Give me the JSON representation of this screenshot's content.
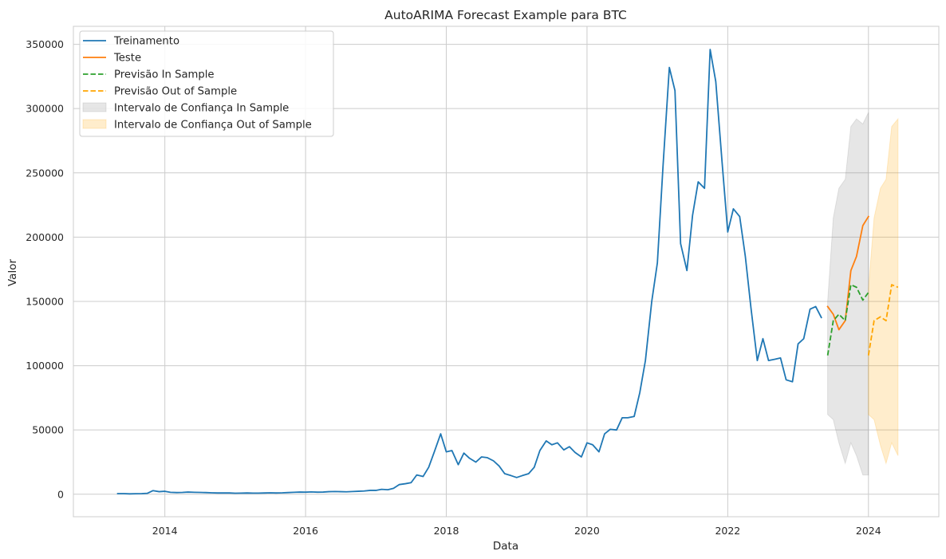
{
  "chart_data": {
    "type": "line",
    "title": "AutoARIMA Forecast Example para BTC",
    "xlabel": "Data",
    "ylabel": "Valor",
    "xlim": [
      2012.7,
      2025.0
    ],
    "ylim": [
      -17500,
      364000
    ],
    "grid": true,
    "legend_position": "top-left",
    "x_ticks": [
      2014,
      2016,
      2018,
      2020,
      2022,
      2024
    ],
    "x_tick_labels": [
      "2014",
      "2016",
      "2018",
      "2020",
      "2022",
      "2024"
    ],
    "y_ticks": [
      0,
      50000,
      100000,
      150000,
      200000,
      250000,
      300000,
      350000
    ],
    "y_tick_labels": [
      "0",
      "50000",
      "100000",
      "150000",
      "200000",
      "250000",
      "300000",
      "350000"
    ],
    "series": [
      {
        "name": "Treinamento",
        "kind": "line",
        "color": "#1f77b4",
        "dash": "solid",
        "points": [
          [
            2013.33,
            500
          ],
          [
            2013.42,
            500
          ],
          [
            2013.5,
            300
          ],
          [
            2013.58,
            400
          ],
          [
            2013.67,
            500
          ],
          [
            2013.75,
            700
          ],
          [
            2013.83,
            2800
          ],
          [
            2013.92,
            2000
          ],
          [
            2014.0,
            2300
          ],
          [
            2014.08,
            1500
          ],
          [
            2014.17,
            1300
          ],
          [
            2014.25,
            1400
          ],
          [
            2014.33,
            1700
          ],
          [
            2014.42,
            1500
          ],
          [
            2014.5,
            1400
          ],
          [
            2014.58,
            1300
          ],
          [
            2014.67,
            1100
          ],
          [
            2014.75,
            1000
          ],
          [
            2014.83,
            1000
          ],
          [
            2014.92,
            1000
          ],
          [
            2015.0,
            800
          ],
          [
            2015.08,
            900
          ],
          [
            2015.17,
            1000
          ],
          [
            2015.25,
            900
          ],
          [
            2015.33,
            900
          ],
          [
            2015.42,
            1000
          ],
          [
            2015.5,
            1100
          ],
          [
            2015.58,
            1000
          ],
          [
            2015.67,
            1100
          ],
          [
            2015.75,
            1300
          ],
          [
            2015.83,
            1500
          ],
          [
            2015.92,
            1700
          ],
          [
            2016.0,
            1600
          ],
          [
            2016.08,
            1800
          ],
          [
            2016.17,
            1600
          ],
          [
            2016.25,
            1700
          ],
          [
            2016.33,
            2000
          ],
          [
            2016.42,
            2100
          ],
          [
            2016.5,
            2000
          ],
          [
            2016.58,
            1900
          ],
          [
            2016.67,
            2100
          ],
          [
            2016.75,
            2300
          ],
          [
            2016.83,
            2500
          ],
          [
            2016.92,
            3000
          ],
          [
            2017.0,
            3000
          ],
          [
            2017.08,
            3800
          ],
          [
            2017.17,
            3500
          ],
          [
            2017.25,
            4600
          ],
          [
            2017.33,
            7500
          ],
          [
            2017.42,
            8200
          ],
          [
            2017.5,
            9000
          ],
          [
            2017.58,
            15000
          ],
          [
            2017.67,
            13800
          ],
          [
            2017.75,
            21000
          ],
          [
            2017.83,
            33000
          ],
          [
            2017.92,
            47000
          ],
          [
            2018.0,
            33000
          ],
          [
            2018.08,
            34000
          ],
          [
            2018.17,
            23000
          ],
          [
            2018.25,
            32000
          ],
          [
            2018.33,
            28000
          ],
          [
            2018.42,
            25000
          ],
          [
            2018.5,
            29000
          ],
          [
            2018.58,
            28500
          ],
          [
            2018.67,
            26000
          ],
          [
            2018.75,
            22000
          ],
          [
            2018.83,
            16000
          ],
          [
            2018.92,
            14500
          ],
          [
            2019.0,
            13000
          ],
          [
            2019.08,
            14500
          ],
          [
            2019.17,
            16000
          ],
          [
            2019.25,
            21000
          ],
          [
            2019.33,
            34000
          ],
          [
            2019.42,
            41500
          ],
          [
            2019.5,
            38500
          ],
          [
            2019.58,
            40000
          ],
          [
            2019.67,
            34500
          ],
          [
            2019.75,
            37000
          ],
          [
            2019.83,
            32500
          ],
          [
            2019.92,
            29000
          ],
          [
            2020.0,
            40000
          ],
          [
            2020.08,
            38500
          ],
          [
            2020.17,
            33000
          ],
          [
            2020.25,
            47000
          ],
          [
            2020.33,
            50500
          ],
          [
            2020.42,
            50000
          ],
          [
            2020.5,
            59500
          ],
          [
            2020.58,
            59500
          ],
          [
            2020.67,
            60500
          ],
          [
            2020.75,
            79000
          ],
          [
            2020.83,
            104000
          ],
          [
            2020.92,
            150000
          ],
          [
            2021.0,
            180000
          ],
          [
            2021.08,
            255000
          ],
          [
            2021.17,
            332000
          ],
          [
            2021.25,
            314000
          ],
          [
            2021.33,
            195000
          ],
          [
            2021.42,
            174000
          ],
          [
            2021.5,
            217000
          ],
          [
            2021.58,
            243000
          ],
          [
            2021.67,
            238000
          ],
          [
            2021.75,
            346000
          ],
          [
            2021.83,
            321000
          ],
          [
            2021.92,
            258000
          ],
          [
            2022.0,
            204000
          ],
          [
            2022.08,
            222000
          ],
          [
            2022.17,
            216000
          ],
          [
            2022.25,
            185000
          ],
          [
            2022.33,
            145000
          ],
          [
            2022.42,
            104000
          ],
          [
            2022.5,
            121000
          ],
          [
            2022.58,
            104000
          ],
          [
            2022.67,
            105000
          ],
          [
            2022.75,
            106000
          ],
          [
            2022.83,
            89000
          ],
          [
            2022.92,
            87500
          ],
          [
            2023.0,
            117000
          ],
          [
            2023.08,
            121000
          ],
          [
            2023.17,
            144000
          ],
          [
            2023.25,
            146000
          ],
          [
            2023.33,
            137500
          ]
        ]
      },
      {
        "name": "Teste",
        "kind": "line",
        "color": "#ff7f0e",
        "dash": "solid",
        "points": [
          [
            2023.42,
            146000
          ],
          [
            2023.5,
            140000
          ],
          [
            2023.58,
            128000
          ],
          [
            2023.67,
            135000
          ],
          [
            2023.75,
            174000
          ],
          [
            2023.83,
            185000
          ],
          [
            2023.92,
            209000
          ],
          [
            2024.0,
            216000
          ]
        ]
      },
      {
        "name": "Previsão In Sample",
        "kind": "line",
        "color": "#2ca02c",
        "dash": "dashed",
        "points": [
          [
            2023.42,
            108000
          ],
          [
            2023.5,
            135000
          ],
          [
            2023.58,
            140000
          ],
          [
            2023.67,
            135000
          ],
          [
            2023.75,
            163000
          ],
          [
            2023.83,
            161000
          ],
          [
            2023.92,
            151000
          ],
          [
            2024.0,
            157000
          ]
        ]
      },
      {
        "name": "Previsão Out of Sample",
        "kind": "line",
        "color": "#ffa500",
        "dash": "dashed",
        "points": [
          [
            2024.0,
            108000
          ],
          [
            2024.08,
            135000
          ],
          [
            2024.17,
            138000
          ],
          [
            2024.25,
            135000
          ],
          [
            2024.33,
            163000
          ],
          [
            2024.42,
            161000
          ]
        ]
      },
      {
        "name": "Intervalo de Confiança In Sample",
        "kind": "band",
        "color": "#808080",
        "opacity": 0.2,
        "x": [
          2023.42,
          2023.5,
          2023.58,
          2023.67,
          2023.75,
          2023.83,
          2023.92,
          2024.0
        ],
        "upper": [
          150000,
          215000,
          238000,
          245000,
          286000,
          292000,
          288000,
          297000
        ],
        "lower": [
          62000,
          58000,
          40000,
          24000,
          40000,
          30000,
          15000,
          15000
        ]
      },
      {
        "name": "Intervalo de Confiança Out of Sample",
        "kind": "band",
        "color": "#ffa500",
        "opacity": 0.2,
        "x": [
          2024.0,
          2024.08,
          2024.17,
          2024.25,
          2024.33,
          2024.42
        ],
        "upper": [
          160000,
          215000,
          238000,
          245000,
          286000,
          292000
        ],
        "lower": [
          62000,
          58000,
          38000,
          24000,
          40000,
          30000
        ]
      }
    ]
  }
}
